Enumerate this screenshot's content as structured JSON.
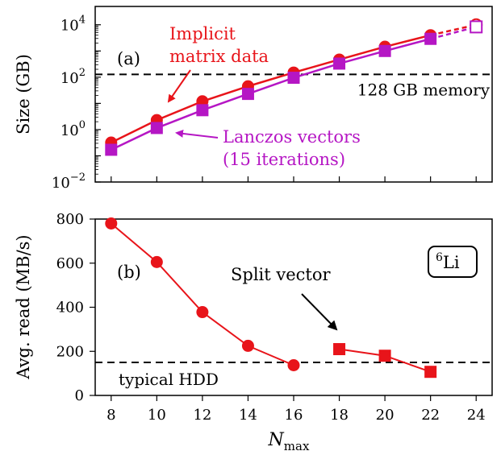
{
  "chart_data": [
    {
      "panel": "(a)",
      "type": "line",
      "ylabel": "Size (GB)",
      "yscale": "log",
      "ylim": [
        0.01,
        50000
      ],
      "xlim": [
        7.3,
        24.7
      ],
      "yticks": [
        {
          "value": 0.01,
          "base": "10",
          "exp": "−2"
        },
        {
          "value": 1,
          "base": "10",
          "exp": "0"
        },
        {
          "value": 100,
          "base": "10",
          "exp": "2"
        },
        {
          "value": 10000,
          "base": "10",
          "exp": "4"
        }
      ],
      "series": [
        {
          "name": "Implicit matrix data",
          "color": "#e8141a",
          "marker": "circle",
          "x": [
            8,
            10,
            12,
            14,
            16,
            18,
            20,
            22,
            24
          ],
          "y": [
            0.32,
            2.3,
            12,
            45,
            150,
            470,
            1450,
            4000,
            10000
          ],
          "dashed_from_x": 22,
          "last_marker_open": true
        },
        {
          "name": "Lanczos vectors (15 iterations)",
          "color": "#b516c4",
          "marker": "square",
          "x": [
            8,
            10,
            12,
            14,
            16,
            18,
            20,
            22,
            24
          ],
          "y": [
            0.17,
            1.15,
            5.5,
            23,
            95,
            330,
            1000,
            2900,
            8300
          ],
          "dashed_from_x": 22,
          "last_marker_open": true
        }
      ],
      "reference_line": {
        "y": 128,
        "label": "128 GB memory"
      },
      "annotations": {
        "implicit_line1": "Implicit",
        "implicit_line2": "matrix data",
        "lanczos_line1": "Lanczos vectors",
        "lanczos_line2": "(15 iterations)"
      },
      "grid": false
    },
    {
      "panel": "(b)",
      "type": "line",
      "ylabel": "Avg. read (MB/s)",
      "ylim": [
        0,
        800
      ],
      "xlim": [
        7.3,
        24.7
      ],
      "xlabel_main": "N",
      "xlabel_sub": "max",
      "xticks": [
        8,
        10,
        12,
        14,
        16,
        18,
        20,
        22,
        24
      ],
      "yticks": [
        0,
        200,
        400,
        600,
        800
      ],
      "series": [
        {
          "color": "#e8141a",
          "marker": "circle",
          "x": [
            8,
            10,
            12,
            14,
            16
          ],
          "y": [
            780,
            605,
            378,
            225,
            137
          ]
        },
        {
          "color": "#e8141a",
          "marker": "square",
          "x": [
            18,
            20,
            22
          ],
          "y": [
            210,
            180,
            107
          ]
        }
      ],
      "reference_line": {
        "y": 150,
        "label": "typical HDD"
      },
      "annotations": {
        "split": "Split vector",
        "isotope_mass": "6",
        "isotope_symbol": "Li"
      },
      "grid": false
    }
  ]
}
